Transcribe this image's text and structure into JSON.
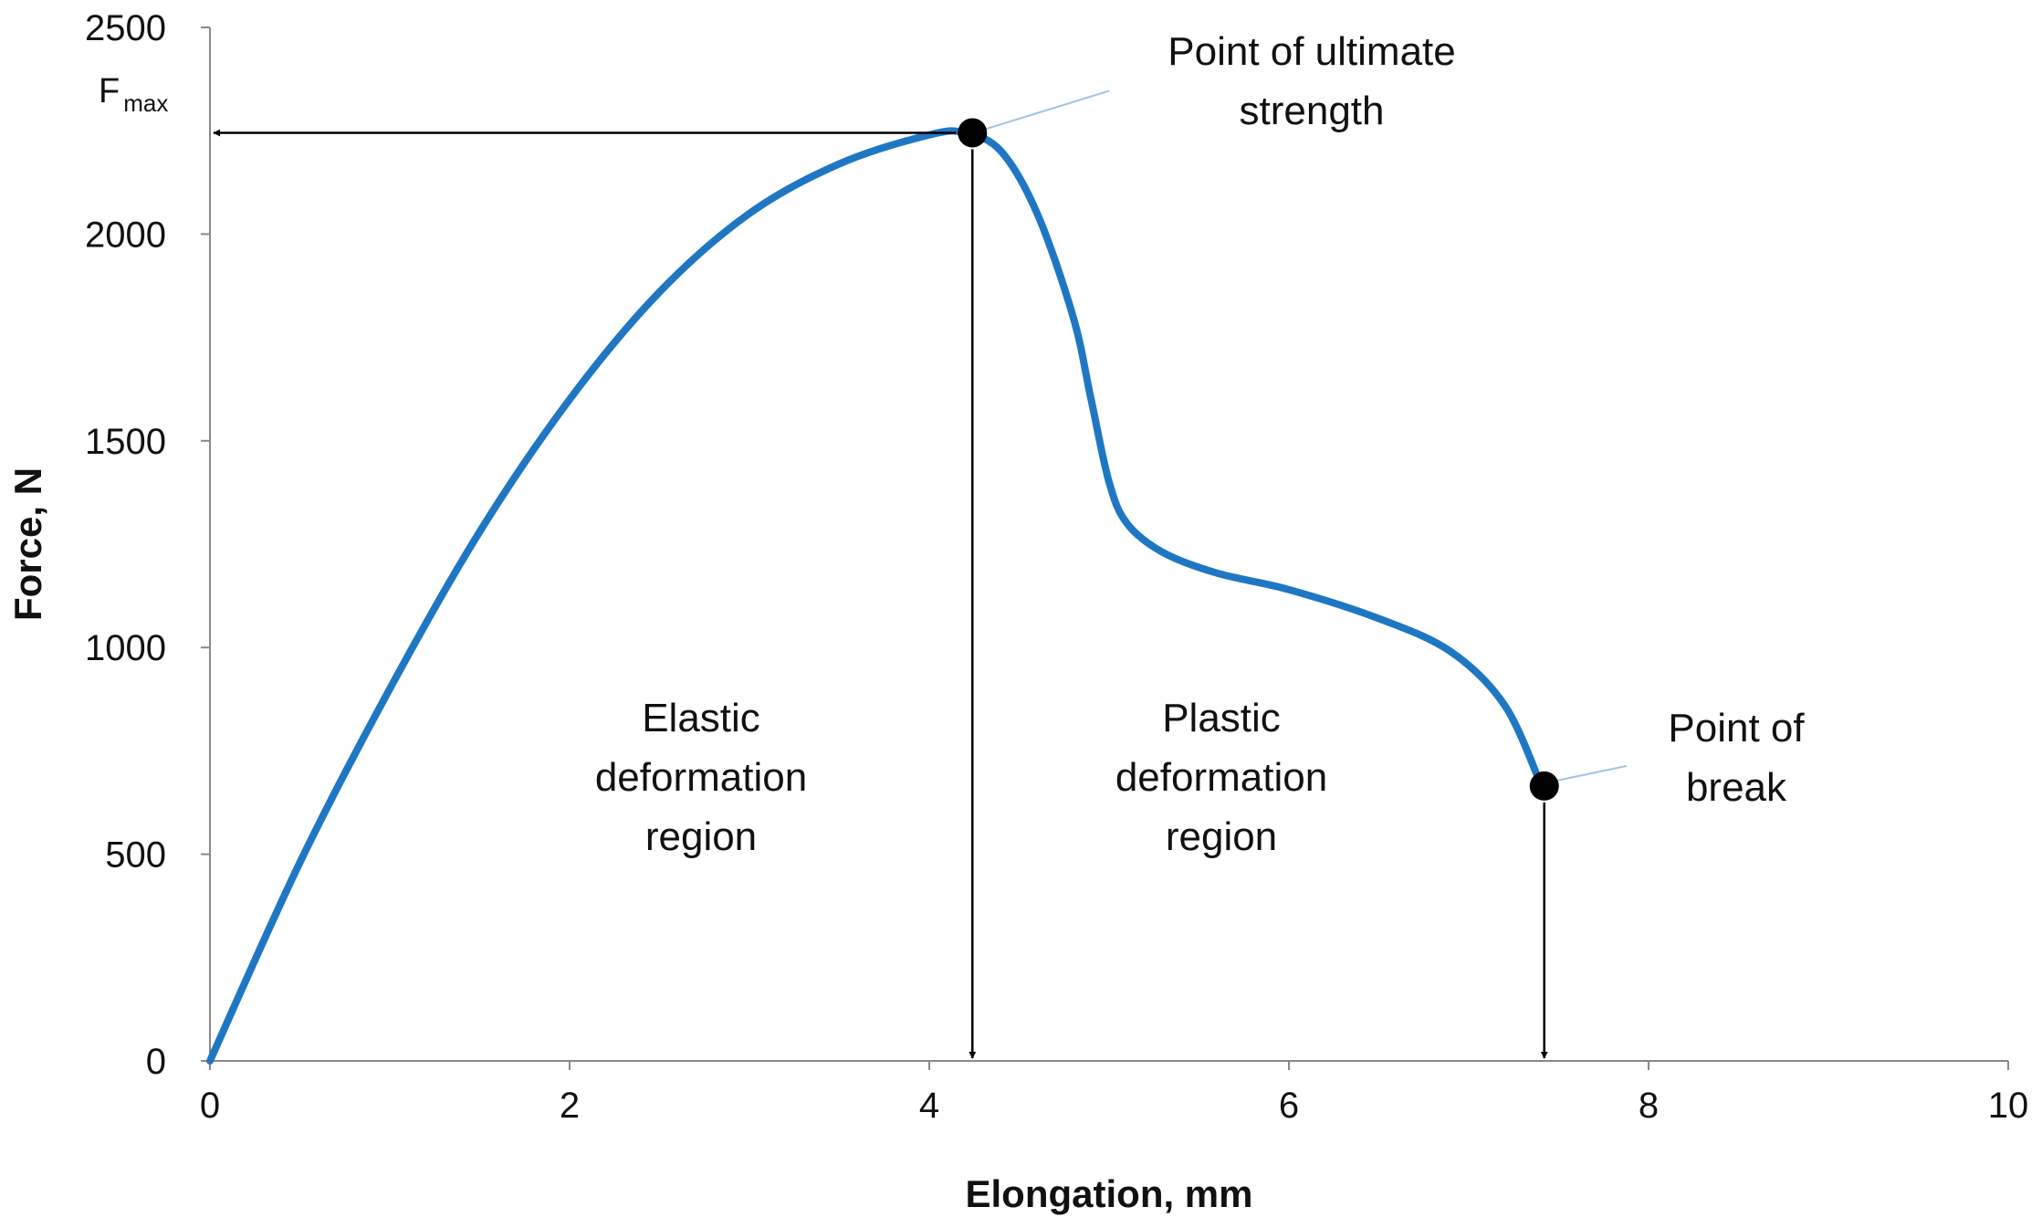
{
  "chart_data": {
    "type": "line",
    "xlabel": "Elongation, mm",
    "ylabel": "Force, N",
    "xlim": [
      0,
      10
    ],
    "ylim": [
      0,
      2500
    ],
    "x_ticks": [
      0,
      2,
      4,
      6,
      8,
      10
    ],
    "y_ticks": [
      0,
      500,
      1000,
      1500,
      2000,
      2500
    ],
    "grid": false,
    "series_color": "#1f77c4",
    "series": [
      {
        "x": [
          0,
          0.5,
          1,
          1.5,
          2,
          2.5,
          3,
          3.5,
          4,
          4.2,
          4.4,
          4.6,
          4.8,
          4.9,
          5.0,
          5.1,
          5.3,
          5.6,
          6.0,
          6.5,
          6.9,
          7.2,
          7.4
        ],
        "y": [
          0,
          480,
          900,
          1280,
          1600,
          1860,
          2050,
          2170,
          2240,
          2245,
          2200,
          2050,
          1800,
          1600,
          1400,
          1300,
          1230,
          1180,
          1140,
          1070,
          990,
          860,
          670
        ]
      }
    ],
    "points": [
      {
        "name": "Point of ultimate strength",
        "x": 4.24,
        "y": 2245
      },
      {
        "name": "Point of break",
        "x": 7.42,
        "y": 665
      }
    ],
    "annotations": {
      "fmax_main": "F",
      "fmax_sub": "max",
      "ultimate_line1": "Point of ultimate",
      "ultimate_line2": "strength",
      "break_line1": "Point of",
      "break_line2": "break",
      "elastic_line1": "Elastic",
      "elastic_line2": "deformation",
      "elastic_line3": "region",
      "plastic_line1": "Plastic",
      "plastic_line2": "deformation",
      "plastic_line3": "region"
    }
  }
}
